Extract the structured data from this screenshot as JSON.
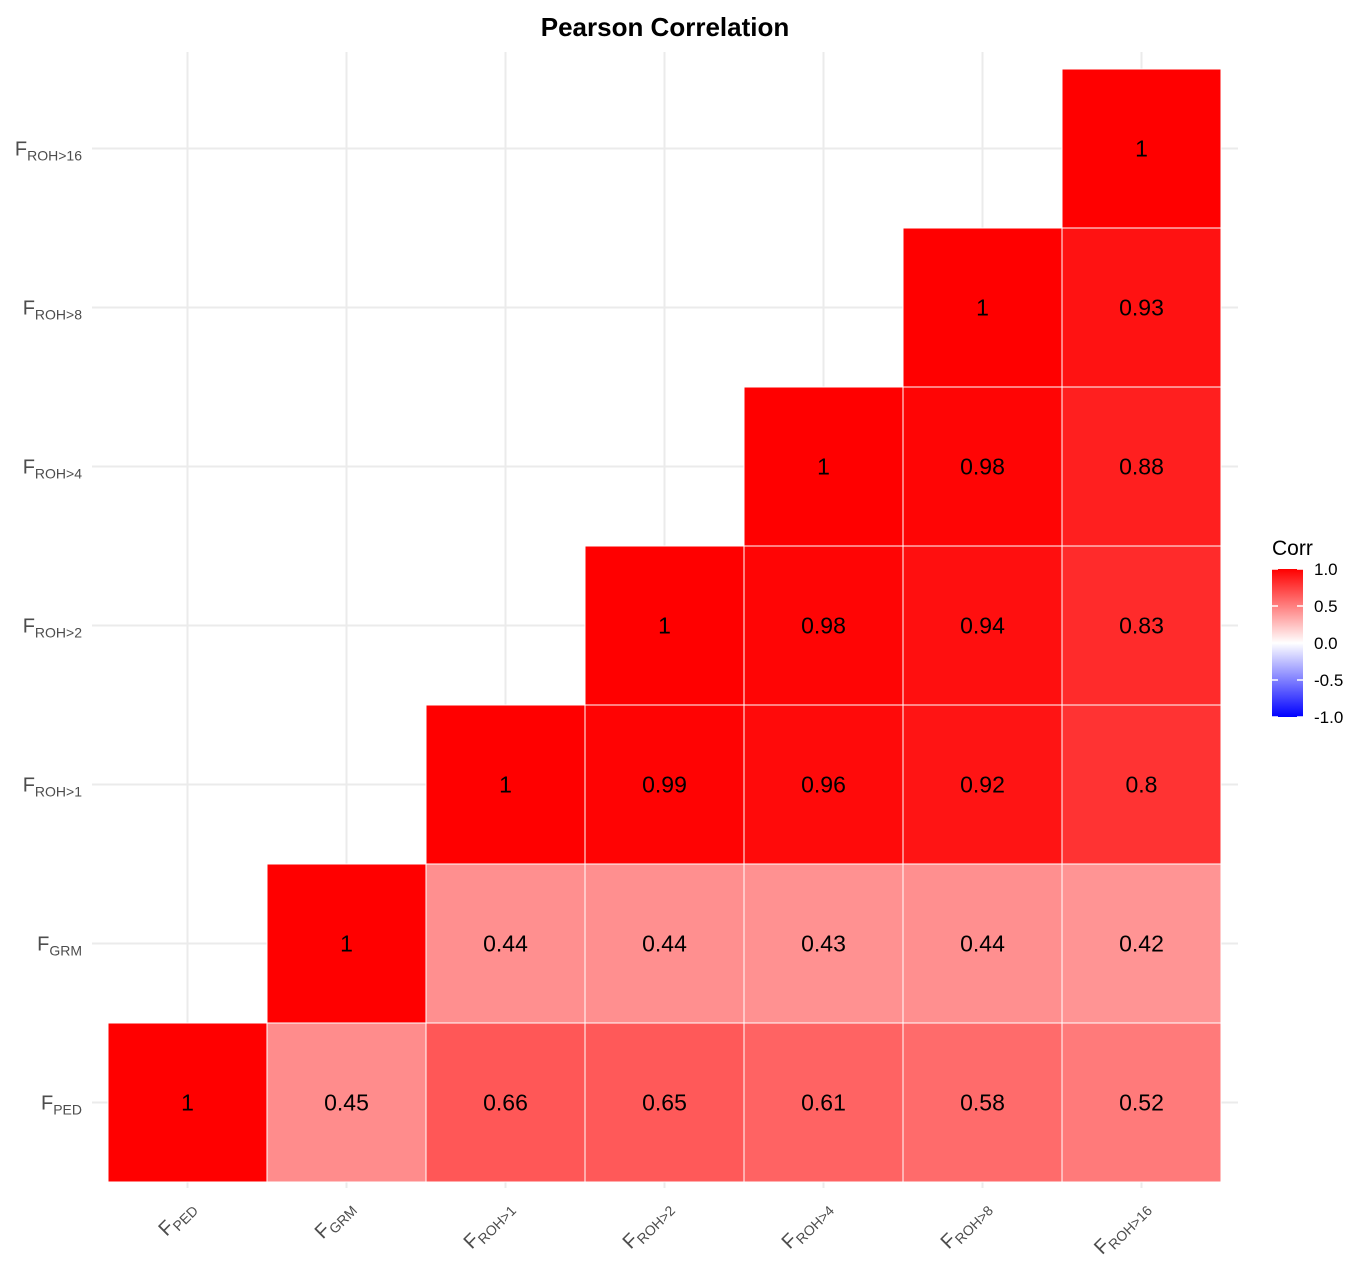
{
  "chart_data": {
    "type": "heatmap",
    "title": "Pearson Correlation",
    "variables": [
      {
        "main": "F",
        "sub": "PED"
      },
      {
        "main": "F",
        "sub": "GRM"
      },
      {
        "main": "F",
        "sub": "ROH>1"
      },
      {
        "main": "F",
        "sub": "ROH>2"
      },
      {
        "main": "F",
        "sub": "ROH>4"
      },
      {
        "main": "F",
        "sub": "ROH>8"
      },
      {
        "main": "F",
        "sub": "ROH>16"
      }
    ],
    "cells": [
      {
        "x": 0,
        "y": 0,
        "value": 1,
        "label": "1"
      },
      {
        "x": 1,
        "y": 0,
        "value": 0.45,
        "label": "0.45"
      },
      {
        "x": 2,
        "y": 0,
        "value": 0.66,
        "label": "0.66"
      },
      {
        "x": 3,
        "y": 0,
        "value": 0.65,
        "label": "0.65"
      },
      {
        "x": 4,
        "y": 0,
        "value": 0.61,
        "label": "0.61"
      },
      {
        "x": 5,
        "y": 0,
        "value": 0.58,
        "label": "0.58"
      },
      {
        "x": 6,
        "y": 0,
        "value": 0.52,
        "label": "0.52"
      },
      {
        "x": 1,
        "y": 1,
        "value": 1,
        "label": "1"
      },
      {
        "x": 2,
        "y": 1,
        "value": 0.44,
        "label": "0.44"
      },
      {
        "x": 3,
        "y": 1,
        "value": 0.44,
        "label": "0.44"
      },
      {
        "x": 4,
        "y": 1,
        "value": 0.43,
        "label": "0.43"
      },
      {
        "x": 5,
        "y": 1,
        "value": 0.44,
        "label": "0.44"
      },
      {
        "x": 6,
        "y": 1,
        "value": 0.42,
        "label": "0.42"
      },
      {
        "x": 2,
        "y": 2,
        "value": 1,
        "label": "1"
      },
      {
        "x": 3,
        "y": 2,
        "value": 0.99,
        "label": "0.99"
      },
      {
        "x": 4,
        "y": 2,
        "value": 0.96,
        "label": "0.96"
      },
      {
        "x": 5,
        "y": 2,
        "value": 0.92,
        "label": "0.92"
      },
      {
        "x": 6,
        "y": 2,
        "value": 0.8,
        "label": "0.8"
      },
      {
        "x": 3,
        "y": 3,
        "value": 1,
        "label": "1"
      },
      {
        "x": 4,
        "y": 3,
        "value": 0.98,
        "label": "0.98"
      },
      {
        "x": 5,
        "y": 3,
        "value": 0.94,
        "label": "0.94"
      },
      {
        "x": 6,
        "y": 3,
        "value": 0.83,
        "label": "0.83"
      },
      {
        "x": 4,
        "y": 4,
        "value": 1,
        "label": "1"
      },
      {
        "x": 5,
        "y": 4,
        "value": 0.98,
        "label": "0.98"
      },
      {
        "x": 6,
        "y": 4,
        "value": 0.88,
        "label": "0.88"
      },
      {
        "x": 5,
        "y": 5,
        "value": 1,
        "label": "1"
      },
      {
        "x": 6,
        "y": 5,
        "value": 0.93,
        "label": "0.93"
      },
      {
        "x": 6,
        "y": 6,
        "value": 1,
        "label": "1"
      }
    ],
    "legend": {
      "title": "Corr",
      "ticks": [
        {
          "value": 1.0,
          "label": "1.0"
        },
        {
          "value": 0.5,
          "label": "0.5"
        },
        {
          "value": 0.0,
          "label": "0.0"
        },
        {
          "value": -0.5,
          "label": "-0.5"
        },
        {
          "value": -1.0,
          "label": "-1.0"
        }
      ],
      "range": [
        -1,
        1
      ],
      "placement": "right"
    },
    "colors": {
      "high": "#ff0000",
      "mid": "#ffffff",
      "low": "#0000ff",
      "grid": "#ebebeb"
    },
    "grid": true
  }
}
